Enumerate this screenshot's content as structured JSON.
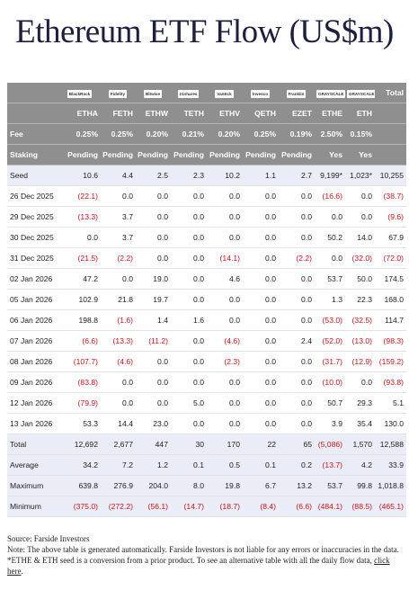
{
  "title": "Ethereum ETF Flow (US$m)",
  "table": {
    "logos": [
      "BlackRock",
      "Fidelity",
      "Bitwise",
      "21shares",
      "VanEck",
      "Invesco",
      "Franklin",
      "GRAYSCALE",
      "GRAYSCALE"
    ],
    "total_header": "Total",
    "tickers": [
      "ETHA",
      "FETH",
      "ETHW",
      "TETH",
      "ETHV",
      "QETH",
      "EZET",
      "ETHE",
      "ETH"
    ],
    "fee": {
      "label": "Fee",
      "values": [
        "0.25%",
        "0.25%",
        "0.20%",
        "0.21%",
        "0.20%",
        "0.25%",
        "0.19%",
        "2.50%",
        "0.15%"
      ]
    },
    "staking": {
      "label": "Staking",
      "values": [
        "Pending",
        "Pending",
        "Pending",
        "Pending",
        "Pending",
        "Pending",
        "Pending",
        "Yes",
        "Yes"
      ]
    },
    "seed": [
      "Seed",
      "10.6",
      "4.4",
      "2.5",
      "2.3",
      "10.2",
      "1.1",
      "2.7",
      "9,199*",
      "1,023*",
      "10,255"
    ],
    "days": [
      [
        "26 Dec 2025",
        "(22.1)",
        "0.0",
        "0.0",
        "0.0",
        "0.0",
        "0.0",
        "0.0",
        "(16.6)",
        "0.0",
        "(38.7)"
      ],
      [
        "29 Dec 2025",
        "(13.3)",
        "3.7",
        "0.0",
        "0.0",
        "0.0",
        "0.0",
        "0.0",
        "0.0",
        "0.0",
        "(9.6)"
      ],
      [
        "30 Dec 2025",
        "0.0",
        "3.7",
        "0.0",
        "0.0",
        "0.0",
        "0.0",
        "0.0",
        "50.2",
        "14.0",
        "67.9"
      ],
      [
        "31 Dec 2025",
        "(21.5)",
        "(2.2)",
        "0.0",
        "0.0",
        "(14.1)",
        "0.0",
        "(2.2)",
        "0.0",
        "(32.0)",
        "(72.0)"
      ],
      [
        "02 Jan 2026",
        "47.2",
        "0.0",
        "19.0",
        "0.0",
        "4.6",
        "0.0",
        "0.0",
        "53.7",
        "50.0",
        "174.5"
      ],
      [
        "05 Jan 2026",
        "102.9",
        "21.8",
        "19.7",
        "0.0",
        "0.0",
        "0.0",
        "0.0",
        "1.3",
        "22.3",
        "168.0"
      ],
      [
        "06 Jan 2026",
        "198.8",
        "(1.6)",
        "1.4",
        "1.6",
        "0.0",
        "0.0",
        "0.0",
        "(53.0)",
        "(32.5)",
        "114.7"
      ],
      [
        "07 Jan 2026",
        "(6.6)",
        "(13.3)",
        "(11.2)",
        "0.0",
        "(4.6)",
        "0.0",
        "2.4",
        "(52.0)",
        "(13.0)",
        "(98.3)"
      ],
      [
        "08 Jan 2026",
        "(107.7)",
        "(4.6)",
        "0.0",
        "0.0",
        "(2.3)",
        "0.0",
        "0.0",
        "(31.7)",
        "(12.9)",
        "(159.2)"
      ],
      [
        "09 Jan 2026",
        "(83.8)",
        "0.0",
        "0.0",
        "0.0",
        "0.0",
        "0.0",
        "0.0",
        "(10.0)",
        "0.0",
        "(93.8)"
      ],
      [
        "12 Jan 2026",
        "(79.9)",
        "0.0",
        "0.0",
        "5.0",
        "0.0",
        "0.0",
        "0.0",
        "50.7",
        "29.3",
        "5.1"
      ],
      [
        "13 Jan 2026",
        "53.3",
        "14.4",
        "23.0",
        "0.0",
        "0.0",
        "0.0",
        "0.0",
        "3.9",
        "35.4",
        "130.0"
      ]
    ],
    "summary": [
      [
        "Total",
        "12,692",
        "2,677",
        "447",
        "30",
        "170",
        "22",
        "65",
        "(5,086)",
        "1,570",
        "12,588"
      ],
      [
        "Average",
        "34.2",
        "7.2",
        "1.2",
        "0.1",
        "0.5",
        "0.1",
        "0.2",
        "(13.7)",
        "4.2",
        "33.9"
      ],
      [
        "Maximum",
        "639.8",
        "276.9",
        "204.0",
        "8.0",
        "19.8",
        "6.7",
        "13.2",
        "53.7",
        "99.8",
        "1,018.8"
      ],
      [
        "Minimum",
        "(375.0)",
        "(272.2)",
        "(56.1)",
        "(14.7)",
        "(18.7)",
        "(8.4)",
        "(6.6)",
        "(484.1)",
        "(88.5)",
        "(465.1)"
      ]
    ]
  },
  "footer": {
    "source": "Source: Farside Investors",
    "note": "Note: The above table is generated automatically. Farside Investors is not liable for any errors or inaccuracies in the data. *ETHE & ETH seed is a conversion from a prior product.  To see an alternative table with all the daily flow data, ",
    "link": "click here",
    "end": "."
  }
}
